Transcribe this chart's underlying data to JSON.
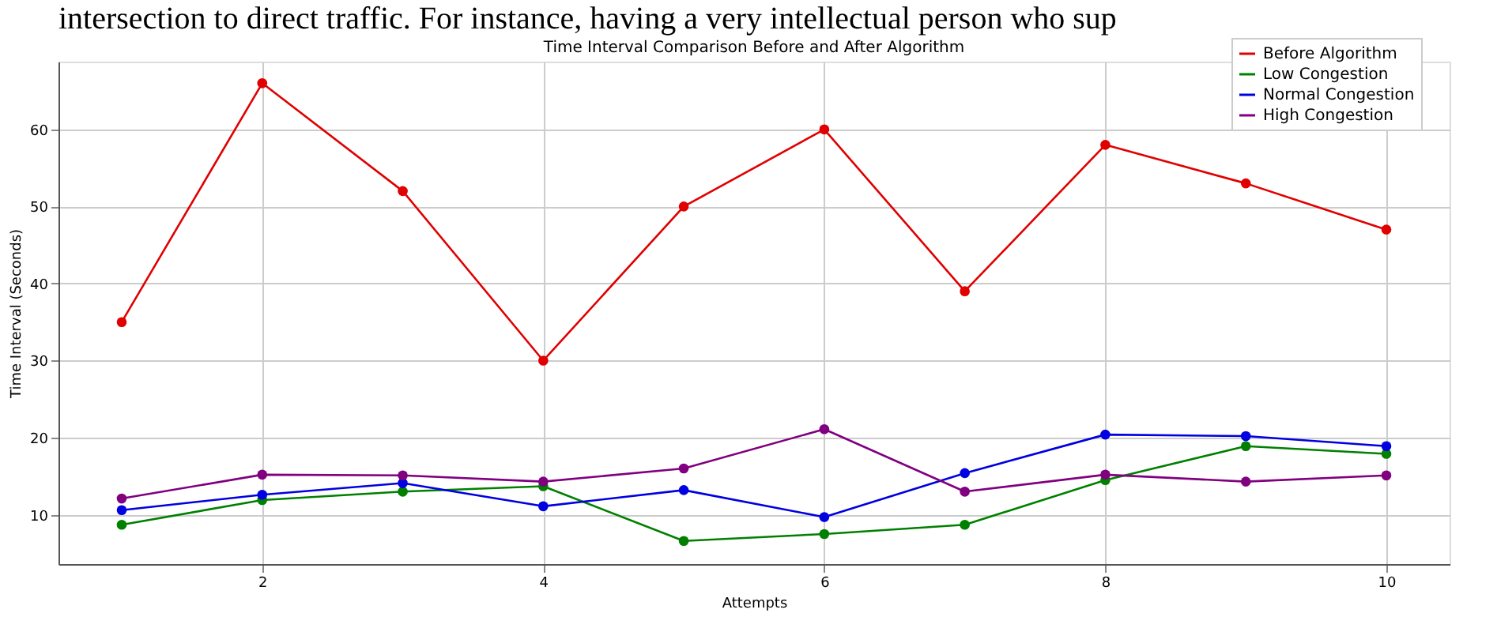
{
  "chart_data": {
    "type": "line",
    "title": "Time Interval Comparison Before and After Algorithm",
    "xlabel": "Attempts",
    "ylabel": "Time Interval (Seconds)",
    "annotations": [
      "intersection to direct traffic. For instance, having a very intellectual person who sup"
    ],
    "x": [
      1,
      2,
      3,
      4,
      5,
      6,
      7,
      8,
      9,
      10
    ],
    "series": [
      {
        "name": "Before Algorithm",
        "color": "#e00000",
        "values": [
          35,
          66,
          52,
          30,
          50,
          60,
          39,
          58,
          53,
          47
        ]
      },
      {
        "name": "Low Congestion",
        "color": "#008000",
        "values": [
          8.7,
          11.9,
          13.0,
          13.7,
          6.6,
          7.5,
          8.7,
          14.5,
          18.9,
          17.9
        ]
      },
      {
        "name": "Normal Congestion",
        "color": "#0000e0",
        "values": [
          10.6,
          12.6,
          14.1,
          11.1,
          13.2,
          9.7,
          15.4,
          20.4,
          20.2,
          18.9
        ]
      },
      {
        "name": "High Congestion",
        "color": "#800080",
        "values": [
          12.1,
          15.2,
          15.1,
          14.3,
          16.0,
          21.1,
          13.0,
          15.2,
          14.3,
          15.1
        ]
      }
    ],
    "xlim": [
      0.55,
      10.45
    ],
    "xticks": [
      2,
      4,
      6,
      8,
      10
    ],
    "ylim": [
      3.6,
      68.8
    ],
    "yticks": [
      10,
      20,
      30,
      40,
      50,
      60
    ],
    "grid": true,
    "legend": "top right",
    "marker": "circle",
    "line_style": "solid"
  }
}
